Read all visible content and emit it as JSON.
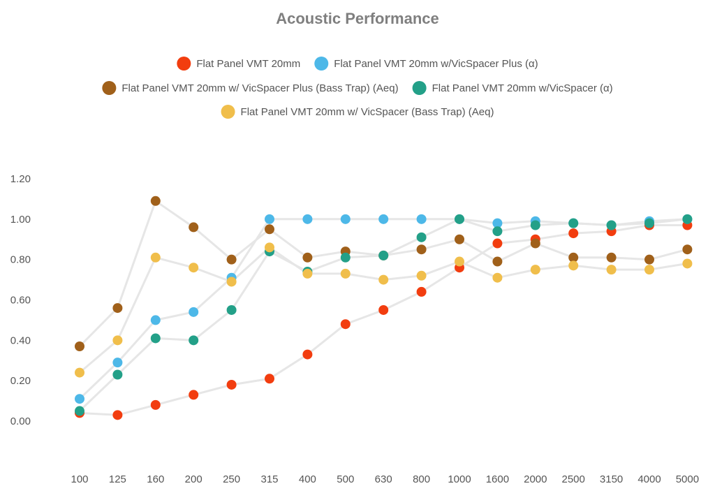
{
  "chart_data": {
    "type": "line",
    "title": "Acoustic Performance",
    "xlabel": "",
    "ylabel": "",
    "categories": [
      "100",
      "125",
      "160",
      "200",
      "250",
      "315",
      "400",
      "500",
      "630",
      "800",
      "1000",
      "1600",
      "2000",
      "2500",
      "3150",
      "4000",
      "5000"
    ],
    "ylim": [
      0,
      1.2
    ],
    "yticks": [
      "0.00",
      "0.20",
      "0.40",
      "0.60",
      "0.80",
      "1.00",
      "1.20"
    ],
    "grid": false,
    "legend": "top",
    "line_color": "#e6e6e6",
    "series": [
      {
        "name": "Flat Panel VMT 20mm",
        "color": "#f23d0f",
        "values": [
          0.04,
          0.03,
          0.08,
          0.13,
          0.18,
          0.21,
          0.33,
          0.48,
          0.55,
          0.64,
          0.76,
          0.88,
          0.9,
          0.93,
          0.94,
          0.97,
          0.97
        ]
      },
      {
        "name": "Flat Panel VMT 20mm w/VicSpacer Plus (α)",
        "color": "#4db8e8",
        "values": [
          0.11,
          0.29,
          0.5,
          0.54,
          0.71,
          1.0,
          1.0,
          1.0,
          1.0,
          1.0,
          1.0,
          0.98,
          0.99,
          0.98,
          0.97,
          0.99,
          1.0
        ]
      },
      {
        "name": "Flat Panel VMT 20mm w/ VicSpacer Plus (Bass Trap) (Aeq)",
        "color": "#a0601a",
        "values": [
          0.37,
          0.56,
          1.09,
          0.96,
          0.8,
          0.95,
          0.81,
          0.84,
          0.82,
          0.85,
          0.9,
          0.79,
          0.88,
          0.81,
          0.81,
          0.8,
          0.85
        ]
      },
      {
        "name": "Flat Panel VMT 20mm w/VicSpacer (α)",
        "color": "#23a088",
        "values": [
          0.05,
          0.23,
          0.41,
          0.4,
          0.55,
          0.84,
          0.74,
          0.81,
          0.82,
          0.91,
          1.0,
          0.94,
          0.97,
          0.98,
          0.97,
          0.98,
          1.0
        ]
      },
      {
        "name": "Flat Panel VMT 20mm w/ VicSpacer (Bass Trap) (Aeq)",
        "color": "#f0be4b",
        "values": [
          0.24,
          0.4,
          0.81,
          0.76,
          0.69,
          0.86,
          0.73,
          0.73,
          0.7,
          0.72,
          0.79,
          0.71,
          0.75,
          0.77,
          0.75,
          0.75,
          0.78
        ]
      }
    ]
  }
}
